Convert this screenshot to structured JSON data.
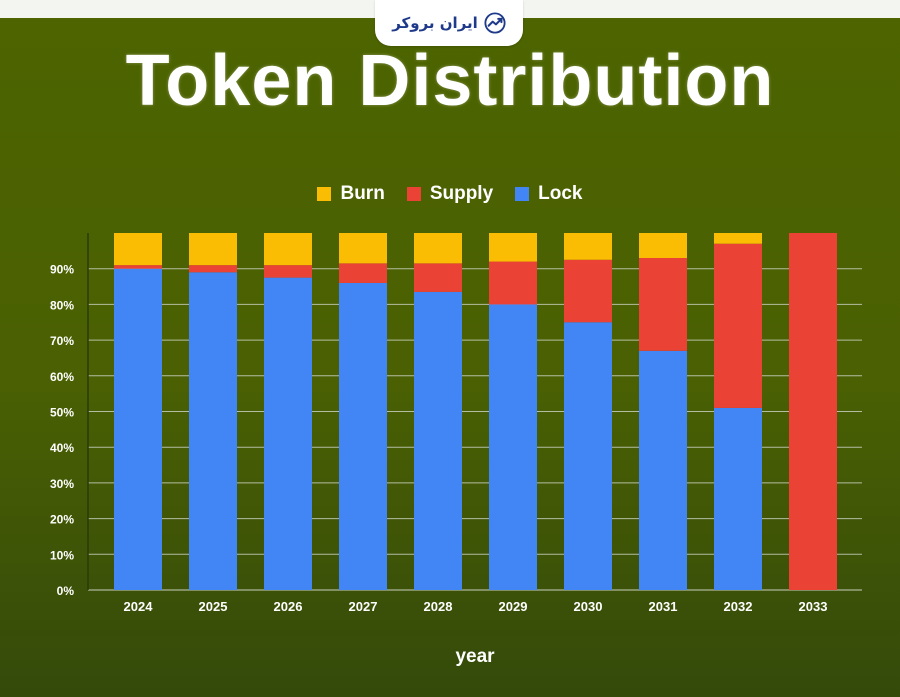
{
  "header": {
    "logo_text": "ایران بروکر",
    "logo_icon": "chart-trend-icon"
  },
  "colors": {
    "lock": "#4285f4",
    "supply": "#ea4335",
    "burn": "#fbbc04",
    "grid": "#c9cfbf",
    "text": "#ffffff"
  },
  "chart_data": {
    "type": "bar",
    "stacked": true,
    "title": "Token Distribution",
    "xlabel": "year",
    "ylabel": "",
    "ylim": [
      0,
      100
    ],
    "grid": true,
    "legend_position": "top-center",
    "yticks": [
      "0%",
      "10%",
      "20%",
      "30%",
      "40%",
      "50%",
      "60%",
      "70%",
      "80%",
      "90%"
    ],
    "ytick_values": [
      0,
      10,
      20,
      30,
      40,
      50,
      60,
      70,
      80,
      90
    ],
    "categories": [
      "2024",
      "2025",
      "2026",
      "2027",
      "2028",
      "2029",
      "2030",
      "2031",
      "2032",
      "2033"
    ],
    "series": [
      {
        "name": "Lock",
        "color_key": "lock",
        "values": [
          90,
          89,
          87.5,
          86,
          83.5,
          80,
          75,
          67,
          51,
          0
        ]
      },
      {
        "name": "Supply",
        "color_key": "supply",
        "values": [
          1,
          2,
          3.5,
          5.5,
          8,
          12,
          17.5,
          26,
          46,
          100
        ]
      },
      {
        "name": "Burn",
        "color_key": "burn",
        "values": [
          9,
          9,
          9,
          8.5,
          8.5,
          8,
          7.5,
          7,
          3,
          0
        ]
      }
    ],
    "legend_order": [
      "Burn",
      "Supply",
      "Lock"
    ]
  }
}
